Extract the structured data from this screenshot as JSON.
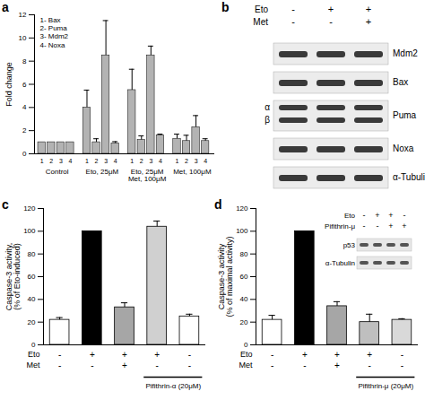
{
  "chart_data": [
    {
      "panel": "a",
      "type": "bar",
      "categories": [
        "Control",
        "Eto, 25μM",
        "Eto, 25μM\nMet, 100μM",
        "Met, 100μM"
      ],
      "series": [
        {
          "name": "1",
          "color": "#b3b3b3",
          "values": [
            1,
            4,
            5.5,
            1.3
          ],
          "errors": [
            0,
            1.5,
            1.8,
            0.4
          ]
        },
        {
          "name": "2",
          "color": "#b3b3b3",
          "values": [
            1,
            1,
            1.2,
            1.1
          ],
          "errors": [
            0,
            0.3,
            0.35,
            0.5
          ]
        },
        {
          "name": "3",
          "color": "#b3b3b3",
          "values": [
            1,
            8.5,
            8.5,
            2.3
          ],
          "errors": [
            0,
            3,
            0.8,
            1
          ]
        },
        {
          "name": "4",
          "color": "#b3b3b3",
          "values": [
            1,
            0.9,
            1.6,
            1.1
          ],
          "errors": [
            0,
            0.15,
            0.1,
            0.2
          ]
        }
      ],
      "y_label": "Fold change",
      "ylim": [
        0,
        12
      ],
      "yticks": [
        0,
        2,
        4,
        6,
        8,
        10,
        12
      ],
      "annotations": [
        "1- Bax",
        "2- Puma",
        "3- Mdm2",
        "4- Noxa"
      ]
    },
    {
      "panel": "c",
      "type": "bar",
      "categories": [
        null,
        null,
        null,
        null,
        null
      ],
      "values": [
        22,
        100,
        33,
        104,
        25
      ],
      "errors": [
        2,
        0,
        4,
        5,
        2
      ],
      "colors": [
        "#ffffff",
        "#000000",
        "#a6a6a6",
        "#d0d0d0",
        "#ffffff"
      ],
      "y_label": "Caspase-3 activity,\n(% of Eto-induced)",
      "ylim": [
        0,
        120
      ],
      "yticks": [
        0,
        20,
        40,
        60,
        80,
        100,
        120
      ],
      "conditions": [
        {
          "name": "Eto",
          "marks": [
            "-",
            "+",
            "+",
            "+",
            "-"
          ]
        },
        {
          "name": "Met",
          "marks": [
            "-",
            "-",
            "+",
            "-",
            "-"
          ]
        }
      ],
      "bracket": {
        "label": "Pifithrin-α (20μM)",
        "bars": [
          3,
          4
        ]
      }
    },
    {
      "panel": "d",
      "type": "bar",
      "categories": [
        null,
        null,
        null,
        null,
        null
      ],
      "values": [
        22,
        100,
        34,
        20,
        22
      ],
      "errors": [
        4,
        0,
        4,
        7,
        1
      ],
      "colors": [
        "#ffffff",
        "#000000",
        "#a6a6a6",
        "#bfbfbf",
        "#d9d9d9"
      ],
      "y_label": "Caspase-3 activity\n(% of maximal activity)",
      "ylim": [
        0,
        120
      ],
      "yticks": [
        0,
        20,
        40,
        60,
        80,
        100,
        120
      ],
      "conditions": [
        {
          "name": "Eto",
          "marks": [
            "-",
            "+",
            "+",
            "+",
            "-"
          ]
        },
        {
          "name": "Met",
          "marks": [
            "-",
            "-",
            "+",
            "-",
            "-"
          ]
        }
      ],
      "bracket": {
        "label": "Pifithrin-μ (20μM)",
        "bars": [
          3,
          4
        ]
      },
      "inset": {
        "conditions": [
          {
            "name": "Eto",
            "marks": [
              "-",
              "+",
              "+",
              "-"
            ]
          },
          {
            "name": "Pifithrin-μ",
            "marks": [
              "-",
              "-",
              "+",
              "+"
            ]
          }
        ],
        "bands": [
          {
            "label": "p53"
          },
          {
            "label": "α-Tubulin"
          }
        ]
      }
    }
  ],
  "blot": {
    "panel": "b",
    "conditions": [
      {
        "name": "Eto",
        "marks": [
          "-",
          "+",
          "+"
        ]
      },
      {
        "name": "Met",
        "marks": [
          "-",
          "-",
          "+"
        ]
      }
    ],
    "bands": [
      {
        "label": "Mdm2"
      },
      {
        "label": "Bax"
      },
      {
        "label": "Puma",
        "sublabels": [
          "α",
          "β"
        ]
      },
      {
        "label": "Noxa"
      },
      {
        "label": "α-Tubulin"
      }
    ]
  }
}
